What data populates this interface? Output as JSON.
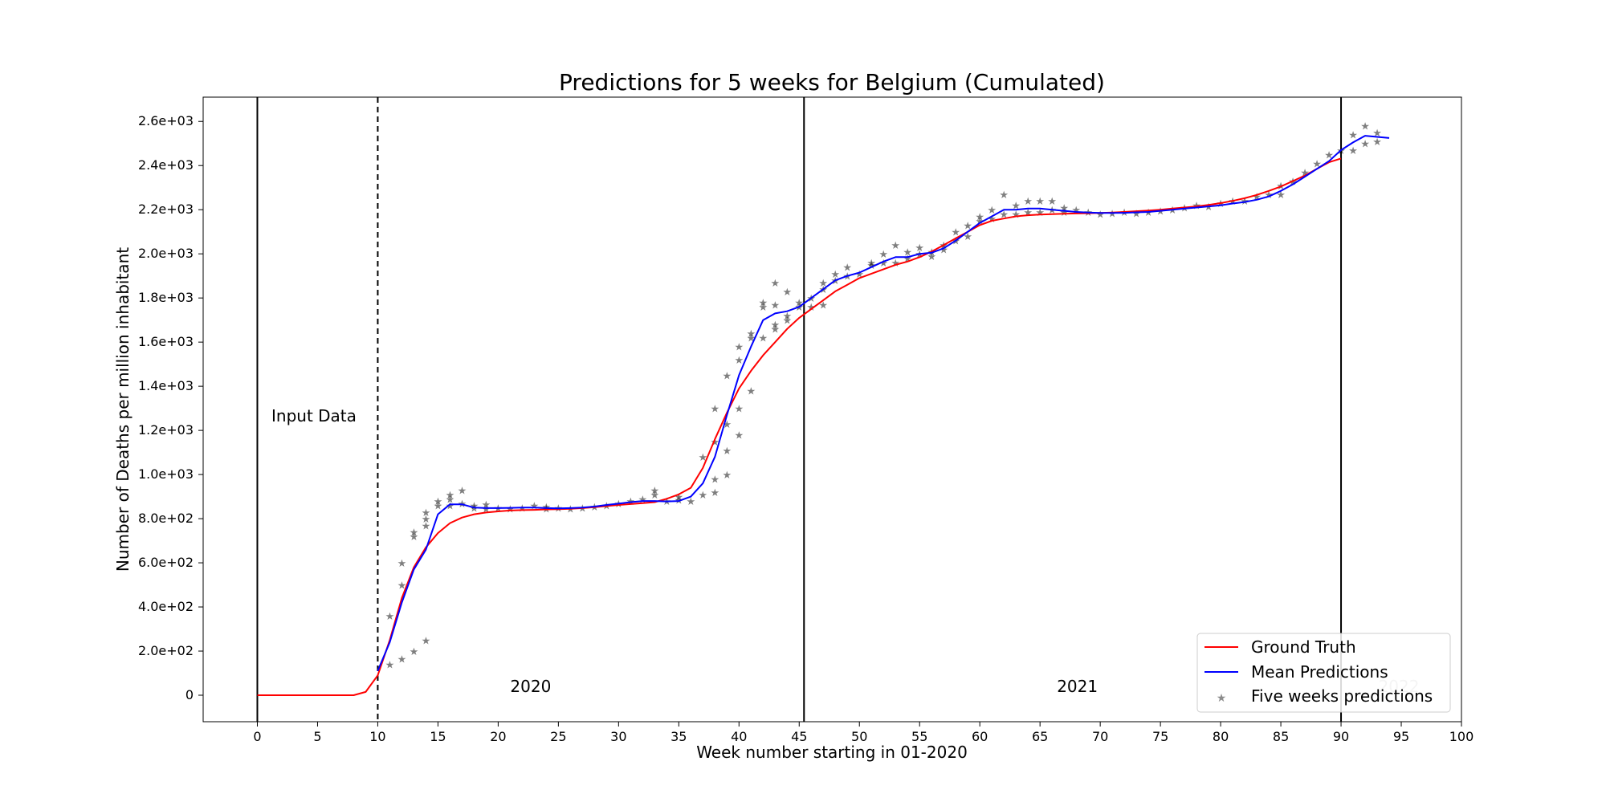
{
  "chart_data": {
    "type": "line",
    "title": "Predictions for 5 weeks for Belgium (Cumulated)",
    "xlabel": "Week number starting in 01-2020",
    "ylabel": "Number of Deaths per million inhabitant",
    "xlim": [
      -4.5,
      100
    ],
    "ylim": [
      -120,
      2710
    ],
    "x_ticks": [
      0,
      5,
      10,
      15,
      20,
      25,
      30,
      35,
      40,
      45,
      50,
      55,
      60,
      65,
      70,
      75,
      80,
      85,
      90,
      95,
      100
    ],
    "x_tick_labels": [
      "0",
      "5",
      "10",
      "15",
      "20",
      "25",
      "30",
      "35",
      "40",
      "45",
      "50",
      "55",
      "60",
      "65",
      "70",
      "75",
      "80",
      "85",
      "90",
      "95",
      "100"
    ],
    "y_ticks": [
      0,
      200,
      400,
      600,
      800,
      1000,
      1200,
      1400,
      1600,
      1800,
      2000,
      2200,
      2400,
      2600
    ],
    "y_tick_labels": [
      "0",
      "2.0e+02",
      "4.0e+02",
      "6.0e+02",
      "8.0e+02",
      "1.0e+03",
      "1.2e+03",
      "1.4e+03",
      "1.6e+03",
      "1.8e+03",
      "2.0e+03",
      "2.2e+03",
      "2.4e+03",
      "2.6e+03"
    ],
    "grid": false,
    "legend_position": "bottom-right",
    "vertical_lines": [
      {
        "x": 0,
        "style": "solid"
      },
      {
        "x": 10,
        "style": "dashed"
      },
      {
        "x": 45.4,
        "style": "solid"
      },
      {
        "x": 90,
        "style": "solid"
      }
    ],
    "annotations": [
      {
        "text": "Input Data",
        "x": 4.7,
        "y": 1240
      },
      {
        "text": "2020",
        "x": 22.7,
        "y": 15
      },
      {
        "text": "2021",
        "x": 68.1,
        "y": 15
      },
      {
        "text": "2022",
        "x": 94.8,
        "y": 15,
        "faded": true
      }
    ],
    "series": [
      {
        "name": "Ground Truth",
        "type": "line",
        "color": "#ff0000",
        "x": [
          0,
          1,
          2,
          3,
          4,
          5,
          6,
          7,
          8,
          9,
          10,
          11,
          12,
          13,
          14,
          15,
          16,
          17,
          18,
          19,
          20,
          21,
          22,
          23,
          24,
          25,
          26,
          27,
          28,
          29,
          30,
          31,
          32,
          33,
          34,
          35,
          36,
          37,
          38,
          39,
          40,
          41,
          42,
          43,
          44,
          45,
          46,
          47,
          48,
          49,
          50,
          51,
          52,
          53,
          54,
          55,
          56,
          57,
          58,
          59,
          60,
          61,
          62,
          63,
          64,
          65,
          66,
          67,
          68,
          69,
          70,
          71,
          72,
          73,
          74,
          75,
          76,
          77,
          78,
          79,
          80,
          81,
          82,
          83,
          84,
          85,
          86,
          87,
          88,
          89,
          90
        ],
        "y": [
          0,
          0,
          0,
          0,
          0,
          0,
          0,
          0,
          0,
          15,
          90,
          250,
          440,
          580,
          670,
          735,
          780,
          805,
          820,
          828,
          833,
          837,
          839,
          840,
          842,
          843,
          845,
          848,
          852,
          857,
          862,
          866,
          870,
          875,
          890,
          910,
          940,
          1030,
          1160,
          1280,
          1390,
          1470,
          1540,
          1600,
          1660,
          1710,
          1750,
          1790,
          1830,
          1860,
          1890,
          1910,
          1930,
          1950,
          1965,
          1985,
          2010,
          2040,
          2070,
          2100,
          2130,
          2150,
          2160,
          2170,
          2175,
          2178,
          2180,
          2182,
          2183,
          2184,
          2185,
          2187,
          2190,
          2193,
          2196,
          2200,
          2205,
          2210,
          2215,
          2222,
          2230,
          2240,
          2252,
          2267,
          2285,
          2305,
          2330,
          2355,
          2385,
          2415,
          2432
        ]
      },
      {
        "name": "Mean Predictions",
        "type": "line",
        "color": "#0000ff",
        "x": [
          10,
          11,
          12,
          13,
          14,
          15,
          16,
          17,
          18,
          19,
          20,
          21,
          22,
          23,
          24,
          25,
          26,
          27,
          28,
          29,
          30,
          31,
          32,
          33,
          34,
          35,
          36,
          37,
          38,
          39,
          40,
          41,
          42,
          43,
          44,
          45,
          46,
          47,
          48,
          49,
          50,
          51,
          52,
          53,
          54,
          55,
          56,
          57,
          58,
          59,
          60,
          61,
          62,
          63,
          64,
          65,
          66,
          67,
          68,
          69,
          70,
          71,
          72,
          73,
          74,
          75,
          76,
          77,
          78,
          79,
          80,
          81,
          82,
          83,
          84,
          85,
          86,
          87,
          88,
          89,
          90,
          91,
          92,
          93,
          94
        ],
        "y": [
          110,
          240,
          420,
          570,
          660,
          820,
          865,
          865,
          850,
          848,
          848,
          849,
          850,
          850,
          848,
          847,
          848,
          850,
          855,
          862,
          868,
          875,
          880,
          880,
          878,
          880,
          900,
          960,
          1080,
          1270,
          1450,
          1580,
          1700,
          1730,
          1740,
          1760,
          1800,
          1840,
          1880,
          1900,
          1915,
          1940,
          1965,
          1985,
          1985,
          2000,
          2005,
          2025,
          2060,
          2100,
          2140,
          2170,
          2200,
          2200,
          2205,
          2205,
          2200,
          2195,
          2190,
          2187,
          2185,
          2185,
          2186,
          2188,
          2190,
          2195,
          2200,
          2205,
          2210,
          2215,
          2220,
          2228,
          2235,
          2245,
          2260,
          2285,
          2315,
          2350,
          2385,
          2420,
          2470,
          2505,
          2535,
          2530,
          2525
        ]
      },
      {
        "name": "Five weeks predictions",
        "type": "scatter",
        "color": "#1f77b4",
        "points": [
          [
            11,
            140
          ],
          [
            12,
            165
          ],
          [
            13,
            200
          ],
          [
            14,
            250
          ],
          [
            11,
            360
          ],
          [
            12,
            500
          ],
          [
            12,
            600
          ],
          [
            13,
            740
          ],
          [
            13,
            720
          ],
          [
            14,
            800
          ],
          [
            14,
            830
          ],
          [
            14,
            770
          ],
          [
            15,
            880
          ],
          [
            15,
            860
          ],
          [
            16,
            910
          ],
          [
            16,
            890
          ],
          [
            16,
            860
          ],
          [
            17,
            930
          ],
          [
            17,
            870
          ],
          [
            18,
            860
          ],
          [
            18,
            850
          ],
          [
            19,
            865
          ],
          [
            19,
            845
          ],
          [
            20,
            850
          ],
          [
            21,
            845
          ],
          [
            22,
            850
          ],
          [
            23,
            860
          ],
          [
            24,
            845
          ],
          [
            24,
            855
          ],
          [
            25,
            850
          ],
          [
            26,
            845
          ],
          [
            27,
            850
          ],
          [
            28,
            855
          ],
          [
            29,
            860
          ],
          [
            30,
            870
          ],
          [
            31,
            880
          ],
          [
            32,
            890
          ],
          [
            33,
            910
          ],
          [
            33,
            930
          ],
          [
            34,
            880
          ],
          [
            35,
            900
          ],
          [
            35,
            885
          ],
          [
            36,
            880
          ],
          [
            37,
            910
          ],
          [
            37,
            1080
          ],
          [
            38,
            1150
          ],
          [
            38,
            1300
          ],
          [
            38,
            920
          ],
          [
            38,
            980
          ],
          [
            39,
            1000
          ],
          [
            39,
            1450
          ],
          [
            39,
            1230
          ],
          [
            39,
            1110
          ],
          [
            40,
            1520
          ],
          [
            40,
            1580
          ],
          [
            40,
            1300
          ],
          [
            40,
            1180
          ],
          [
            41,
            1380
          ],
          [
            41,
            1620
          ],
          [
            41,
            1640
          ],
          [
            42,
            1780
          ],
          [
            42,
            1760
          ],
          [
            42,
            1620
          ],
          [
            43,
            1870
          ],
          [
            43,
            1770
          ],
          [
            43,
            1680
          ],
          [
            43,
            1660
          ],
          [
            44,
            1830
          ],
          [
            44,
            1700
          ],
          [
            44,
            1720
          ],
          [
            45,
            1780
          ],
          [
            45,
            1760
          ],
          [
            46,
            1800
          ],
          [
            46,
            1760
          ],
          [
            47,
            1870
          ],
          [
            47,
            1770
          ],
          [
            47,
            1840
          ],
          [
            48,
            1910
          ],
          [
            48,
            1880
          ],
          [
            49,
            1940
          ],
          [
            49,
            1900
          ],
          [
            50,
            1910
          ],
          [
            51,
            1960
          ],
          [
            51,
            1950
          ],
          [
            52,
            2000
          ],
          [
            52,
            1960
          ],
          [
            53,
            1960
          ],
          [
            53,
            2040
          ],
          [
            54,
            2010
          ],
          [
            54,
            1980
          ],
          [
            55,
            2030
          ],
          [
            55,
            2000
          ],
          [
            56,
            2010
          ],
          [
            56,
            1990
          ],
          [
            57,
            2040
          ],
          [
            57,
            2020
          ],
          [
            58,
            2060
          ],
          [
            58,
            2100
          ],
          [
            59,
            2130
          ],
          [
            59,
            2080
          ],
          [
            60,
            2170
          ],
          [
            60,
            2150
          ],
          [
            61,
            2200
          ],
          [
            61,
            2160
          ],
          [
            62,
            2270
          ],
          [
            62,
            2180
          ],
          [
            63,
            2220
          ],
          [
            63,
            2180
          ],
          [
            64,
            2240
          ],
          [
            64,
            2190
          ],
          [
            65,
            2240
          ],
          [
            65,
            2190
          ],
          [
            66,
            2240
          ],
          [
            66,
            2200
          ],
          [
            67,
            2210
          ],
          [
            67,
            2190
          ],
          [
            68,
            2200
          ],
          [
            69,
            2190
          ],
          [
            70,
            2180
          ],
          [
            71,
            2185
          ],
          [
            72,
            2190
          ],
          [
            73,
            2185
          ],
          [
            74,
            2190
          ],
          [
            75,
            2195
          ],
          [
            76,
            2200
          ],
          [
            77,
            2210
          ],
          [
            78,
            2220
          ],
          [
            79,
            2215
          ],
          [
            80,
            2230
          ],
          [
            81,
            2240
          ],
          [
            82,
            2240
          ],
          [
            83,
            2260
          ],
          [
            84,
            2270
          ],
          [
            85,
            2310
          ],
          [
            85,
            2270
          ],
          [
            86,
            2330
          ],
          [
            87,
            2370
          ],
          [
            88,
            2410
          ],
          [
            89,
            2450
          ],
          [
            90,
            2470
          ],
          [
            91,
            2470
          ],
          [
            91,
            2540
          ],
          [
            92,
            2500
          ],
          [
            92,
            2580
          ],
          [
            93,
            2510
          ],
          [
            93,
            2550
          ]
        ],
        "point_colors": [
          "#1f77b4",
          "#ff7f0e",
          "#2ca02c",
          "#d62728",
          "#9467bd",
          "#8c564b",
          "#e377c2",
          "#7f7f7f",
          "#bcbd22",
          "#17becf"
        ]
      }
    ]
  }
}
